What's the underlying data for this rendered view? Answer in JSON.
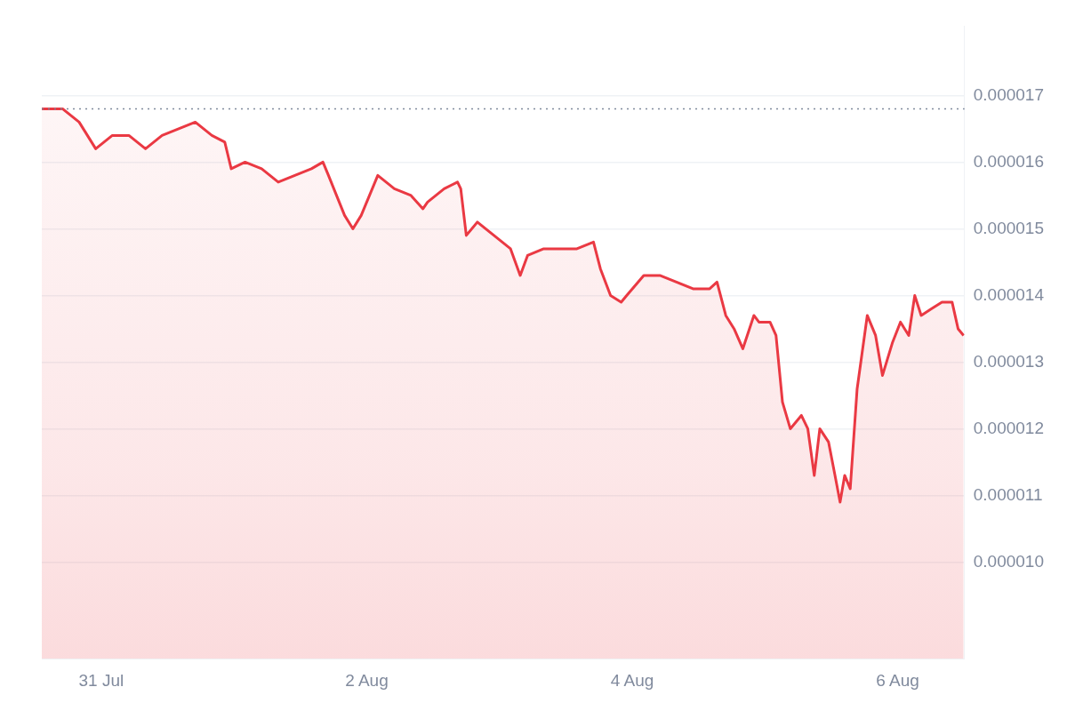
{
  "chart_data": {
    "type": "area",
    "marker": "none",
    "line_style": "solid",
    "grid": "y",
    "legend": false,
    "xlim": [
      "--07-30T13:15",
      "--08-06T12:05"
    ],
    "xticks": [
      {
        "value": "--07-31",
        "label": "31 Jul"
      },
      {
        "value": "--08-02",
        "label": "2 Aug"
      },
      {
        "value": "--08-04",
        "label": "4 Aug"
      },
      {
        "value": "--08-06",
        "label": "6 Aug"
      }
    ],
    "ylim": [
      8.55e-06,
      1.804e-05
    ],
    "yticks": [
      {
        "value": 1e-05,
        "label": "0.000010"
      },
      {
        "value": 1.1e-05,
        "label": "0.000011"
      },
      {
        "value": 1.2e-05,
        "label": "0.000012"
      },
      {
        "value": 1.3e-05,
        "label": "0.000013"
      },
      {
        "value": 1.4e-05,
        "label": "0.000014"
      },
      {
        "value": 1.5e-05,
        "label": "0.000015"
      },
      {
        "value": 1.6e-05,
        "label": "0.000016"
      },
      {
        "value": 1.7e-05,
        "label": "0.000017"
      }
    ],
    "ref_lines": [
      {
        "axis": "y",
        "value": 1.68e-05,
        "color": "#808a9d",
        "line_style": "dotted"
      }
    ],
    "series": [
      {
        "color": "#ea3943",
        "x": [
          "--07-30T13:15",
          "--07-30T14:00",
          "--07-30T17:00",
          "--07-30T20:00",
          "--07-30T23:00",
          "--07-31T02:00",
          "--07-31T05:00",
          "--07-31T08:00",
          "--07-31T11:00",
          "--07-31T14:00",
          "--07-31T17:00",
          "--07-31T20:00",
          "--07-31T22:20",
          "--07-31T23:30",
          "--08-01T02:00",
          "--08-01T05:00",
          "--08-01T08:00",
          "--08-01T11:00",
          "--08-01T14:00",
          "--08-01T16:05",
          "--08-01T17:05",
          "--08-01T20:00",
          "--08-01T21:30",
          "--08-01T23:00",
          "--08-02T02:00",
          "--08-02T05:00",
          "--08-02T08:00",
          "--08-02T10:10",
          "--08-02T11:00",
          "--08-02T14:00",
          "--08-02T16:25",
          "--08-02T17:00",
          "--08-02T18:00",
          "--08-02T20:00",
          "--08-02T23:00",
          "--08-03T02:00",
          "--08-03T03:45",
          "--08-03T05:05",
          "--08-03T08:00",
          "--08-03T11:00",
          "--08-03T14:00",
          "--08-03T17:00",
          "--08-03T18:15",
          "--08-03T20:05",
          "--08-03T22:00",
          "--08-03T23:00",
          "--08-04T02:05",
          "--08-04T05:00",
          "--08-04T08:00",
          "--08-04T11:00",
          "--08-04T14:00",
          "--08-04T15:20",
          "--08-04T16:55",
          "--08-04T18:25",
          "--08-04T20:00",
          "--08-04T22:00",
          "--08-04T22:55",
          "--08-05T00:55",
          "--08-05T02:00",
          "--08-05T03:10",
          "--08-05T04:35",
          "--08-05T06:35",
          "--08-05T07:45",
          "--08-05T08:55",
          "--08-05T09:55",
          "--08-05T11:30",
          "--08-05T12:40",
          "--08-05T13:35",
          "--08-05T14:25",
          "--08-05T15:25",
          "--08-05T16:40",
          "--08-05T18:30",
          "--08-05T20:00",
          "--08-05T21:15",
          "--08-05T23:05",
          "--08-06T00:30",
          "--08-06T02:00",
          "--08-06T03:05",
          "--08-06T04:15",
          "--08-06T06:05",
          "--08-06T08:00",
          "--08-06T09:50",
          "--08-06T10:55",
          "--08-06T11:55"
        ],
        "values": [
          1.68e-05,
          1.68e-05,
          1.68e-05,
          1.66e-05,
          1.62e-05,
          1.64e-05,
          1.64e-05,
          1.62e-05,
          1.64e-05,
          1.65e-05,
          1.66e-05,
          1.64e-05,
          1.63e-05,
          1.59e-05,
          1.6e-05,
          1.59e-05,
          1.57e-05,
          1.58e-05,
          1.59e-05,
          1.6e-05,
          1.58e-05,
          1.52e-05,
          1.5e-05,
          1.52e-05,
          1.58e-05,
          1.56e-05,
          1.55e-05,
          1.53e-05,
          1.54e-05,
          1.56e-05,
          1.57e-05,
          1.56e-05,
          1.49e-05,
          1.51e-05,
          1.49e-05,
          1.47e-05,
          1.43e-05,
          1.46e-05,
          1.47e-05,
          1.47e-05,
          1.47e-05,
          1.48e-05,
          1.44e-05,
          1.4e-05,
          1.39e-05,
          1.4e-05,
          1.43e-05,
          1.43e-05,
          1.42e-05,
          1.41e-05,
          1.41e-05,
          1.42e-05,
          1.37e-05,
          1.35e-05,
          1.32e-05,
          1.37e-05,
          1.36e-05,
          1.36e-05,
          1.34e-05,
          1.24e-05,
          1.2e-05,
          1.22e-05,
          1.2e-05,
          1.13e-05,
          1.2e-05,
          1.18e-05,
          1.13e-05,
          1.09e-05,
          1.13e-05,
          1.11e-05,
          1.26e-05,
          1.37e-05,
          1.34e-05,
          1.28e-05,
          1.33e-05,
          1.36e-05,
          1.34e-05,
          1.4e-05,
          1.37e-05,
          1.38e-05,
          1.39e-05,
          1.39e-05,
          1.35e-05,
          1.34e-05
        ]
      }
    ]
  }
}
